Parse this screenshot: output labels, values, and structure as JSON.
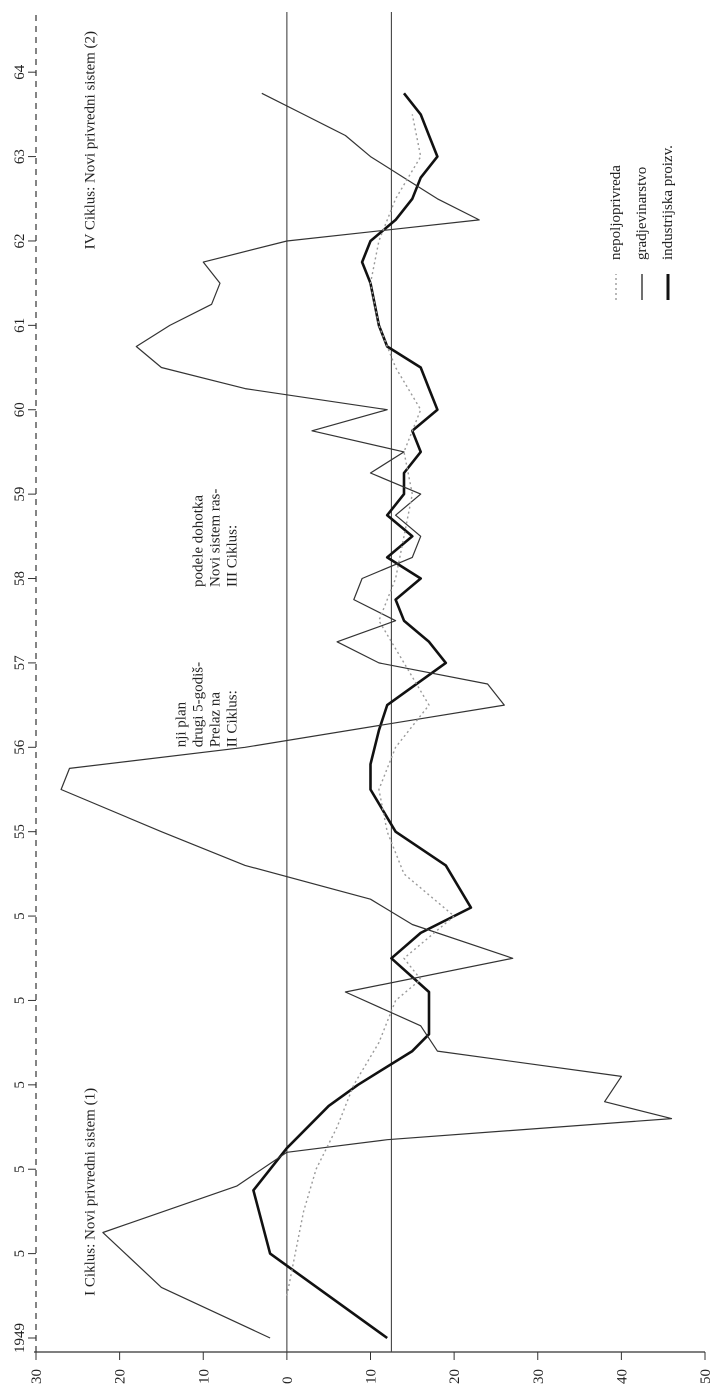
{
  "chart_data": {
    "type": "line",
    "orientation": "rotated-90-ccw",
    "title": "",
    "xlabel": "",
    "ylabel": "",
    "ylim": [
      -30,
      50
    ],
    "xlim": [
      1949,
      1964.5
    ],
    "grid": false,
    "y_ticks": [
      {
        "value": 50,
        "label": "50"
      },
      {
        "value": 40,
        "label": "40"
      },
      {
        "value": 30,
        "label": "30"
      },
      {
        "value": 20,
        "label": "20"
      },
      {
        "value": 10,
        "label": "10"
      },
      {
        "value": 0,
        "label": "0"
      },
      {
        "value": -10,
        "label": "10"
      },
      {
        "value": -20,
        "label": "20"
      },
      {
        "value": -30,
        "label": "30"
      }
    ],
    "x_ticks": [
      {
        "value": 1949,
        "label": "1949"
      },
      {
        "value": 1950,
        "label": "5"
      },
      {
        "value": 1951,
        "label": "5"
      },
      {
        "value": 1952,
        "label": "5"
      },
      {
        "value": 1953,
        "label": "5"
      },
      {
        "value": 1954,
        "label": "5"
      },
      {
        "value": 1955,
        "label": "55"
      },
      {
        "value": 1956,
        "label": "56"
      },
      {
        "value": 1957,
        "label": "57"
      },
      {
        "value": 1958,
        "label": "58"
      },
      {
        "value": 1959,
        "label": "59"
      },
      {
        "value": 1960,
        "label": "60"
      },
      {
        "value": 1961,
        "label": "61"
      },
      {
        "value": 1962,
        "label": "62"
      },
      {
        "value": 1963,
        "label": "63"
      },
      {
        "value": 1964,
        "label": "64"
      }
    ],
    "reference_lines": [
      {
        "value": 12.5,
        "style": "solid"
      },
      {
        "value": 0,
        "style": "solid"
      }
    ],
    "legend": {
      "placement": "top-right",
      "entries": [
        {
          "label": "industrijska proizv.",
          "color": "#111111",
          "style": "thick"
        },
        {
          "label": "gradjevinarstvo",
          "color": "#333333",
          "style": "solid"
        },
        {
          "label": "nepoljoprivreda",
          "color": "#9a9a9a",
          "style": "dotted"
        }
      ]
    },
    "annotations": [
      {
        "lines": [
          "I Ciklus: Novi privredni sistem (1)"
        ],
        "x": 1949.5,
        "y": -23
      },
      {
        "lines": [
          "II Ciklus:",
          "Prelaz na",
          "drugi 5-godiš-",
          "nji plan"
        ],
        "x": 1956.0,
        "y": -6
      },
      {
        "lines": [
          "III Ciklus:",
          "Novi sistem ras-",
          "podele dohotka"
        ],
        "x": 1957.9,
        "y": -6
      },
      {
        "lines": [
          "IV Ciklus: Novi privredni sistem (2)"
        ],
        "x": 1961.9,
        "y": -23
      }
    ],
    "series": [
      {
        "name": "industrijska proizv.",
        "x": [
          1949.0,
          1950.0,
          1950.75,
          1951.25,
          1951.75,
          1952.0,
          1952.4,
          1952.6,
          1953.1,
          1953.5,
          1953.8,
          1954.1,
          1954.6,
          1955.0,
          1955.5,
          1955.8,
          1956.2,
          1956.5,
          1957.0,
          1957.25,
          1957.5,
          1957.75,
          1958.0,
          1958.25,
          1958.5,
          1958.75,
          1959.0,
          1959.25,
          1959.5,
          1959.75,
          1960.0,
          1960.25,
          1960.5,
          1960.75,
          1961.0,
          1961.25,
          1961.5,
          1961.75,
          1962.0,
          1962.25,
          1962.5,
          1962.75,
          1963.0,
          1963.25,
          1963.5,
          1963.75
        ],
        "values": [
          12.0,
          -2.0,
          -4.0,
          0.0,
          5.0,
          8.5,
          15.0,
          17.0,
          17.0,
          12.5,
          16.0,
          22.0,
          19.0,
          13.0,
          10.0,
          10.0,
          11.0,
          12.0,
          19.0,
          17.0,
          14.0,
          13.0,
          16.0,
          12.0,
          15.0,
          12.0,
          14.0,
          14.0,
          16.0,
          15.0,
          18.0,
          17.0,
          16.0,
          12.0,
          11.0,
          10.5,
          10.0,
          9.0,
          10.0,
          13.0,
          15.0,
          16.0,
          18.0,
          17.0,
          16.0,
          14.0
        ]
      },
      {
        "name": "gradjevinarstvo",
        "x": [
          1949.0,
          1949.6,
          1950.25,
          1950.8,
          1951.2,
          1951.35,
          1951.6,
          1951.8,
          1952.1,
          1952.4,
          1952.7,
          1953.1,
          1953.5,
          1953.9,
          1954.2,
          1954.6,
          1955.0,
          1955.5,
          1955.75,
          1956.0,
          1956.5,
          1956.75,
          1957.0,
          1957.25,
          1957.5,
          1957.75,
          1958.0,
          1958.25,
          1958.5,
          1958.75,
          1959.0,
          1959.25,
          1959.5,
          1959.75,
          1960.0,
          1960.25,
          1960.5,
          1960.75,
          1961.0,
          1961.25,
          1961.5,
          1961.75,
          1962.0,
          1962.25,
          1962.5,
          1962.75,
          1963.0,
          1963.25,
          1963.5,
          1963.75
        ],
        "values": [
          -2.0,
          -15.0,
          -22.0,
          -6.0,
          0.0,
          12.0,
          46.0,
          38.0,
          40.0,
          18.0,
          16.0,
          7.0,
          27.0,
          15.0,
          10.0,
          -5.0,
          -15.0,
          -27.0,
          -26.0,
          -5.0,
          26.0,
          24.0,
          11.0,
          6.0,
          13.0,
          8.0,
          9.0,
          15.0,
          16.0,
          13.0,
          16.0,
          10.0,
          14.0,
          3.0,
          12.0,
          -5.0,
          -15.0,
          -18.0,
          -14.0,
          -9.0,
          -8.0,
          -10.0,
          0.0,
          23.0,
          18.0,
          14.0,
          10.0,
          7.0,
          2.0,
          -3.0
        ]
      },
      {
        "name": "nepoljoprivreda",
        "x": [
          1949.5,
          1950.0,
          1950.5,
          1951.0,
          1951.5,
          1952.0,
          1952.5,
          1953.0,
          1953.25,
          1953.5,
          1954.0,
          1954.5,
          1955.0,
          1955.5,
          1956.0,
          1956.5,
          1957.0,
          1957.5,
          1958.0,
          1958.5,
          1959.0,
          1959.5,
          1960.0,
          1960.5,
          1961.0,
          1961.5,
          1962.0,
          1962.5,
          1963.0,
          1963.5
        ],
        "values": [
          0.0,
          1.0,
          2.0,
          3.5,
          6.0,
          8.0,
          11.0,
          13.0,
          16.0,
          14.0,
          20.0,
          14.0,
          12.0,
          11.0,
          13.0,
          17.0,
          14.0,
          11.0,
          13.0,
          14.0,
          15.0,
          14.0,
          16.0,
          13.0,
          11.0,
          10.0,
          11.0,
          13.0,
          16.0,
          15.0
        ]
      }
    ]
  }
}
